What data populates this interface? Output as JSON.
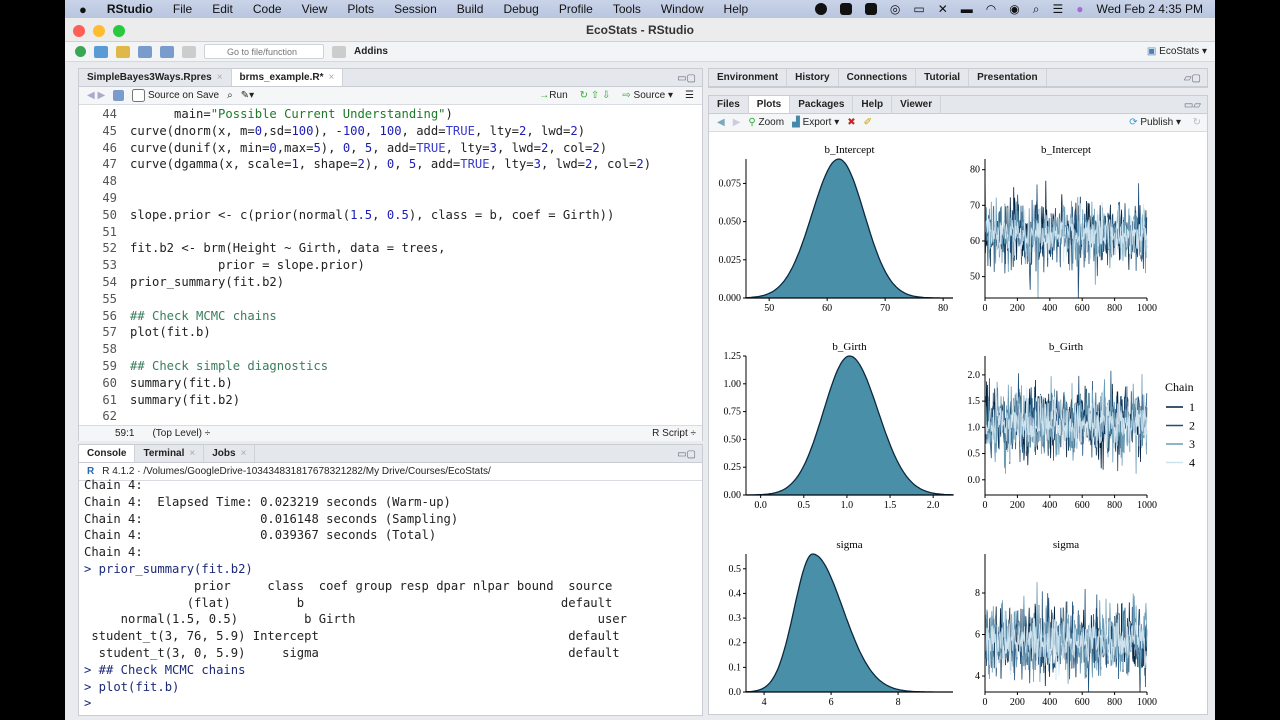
{
  "menubar": {
    "app": "RStudio",
    "items": [
      "File",
      "Edit",
      "Code",
      "View",
      "Plots",
      "Session",
      "Build",
      "Debug",
      "Profile",
      "Tools",
      "Window",
      "Help"
    ],
    "clock": "Wed Feb 2  4:35 PM"
  },
  "window": {
    "title": "EcoStats - RStudio"
  },
  "toolbar": {
    "goto_placeholder": "Go to file/function",
    "addins": "Addins",
    "project": "EcoStats"
  },
  "editor": {
    "tabs": [
      {
        "label": "SimpleBayes3Ways.Rpres",
        "active": false
      },
      {
        "label": "brms_example.R*",
        "active": true
      }
    ],
    "source_on_save": "Source on Save",
    "run": "Run",
    "source": "Source",
    "lines": [
      {
        "n": "44",
        "segs": [
          [
            "      main=",
            ""
          ],
          [
            "\"Possible Current Understanding\"",
            "str"
          ],
          [
            ")",
            ""
          ]
        ]
      },
      {
        "n": "45",
        "segs": [
          [
            "curve(dnorm(x, m=",
            ""
          ],
          [
            "0",
            "num"
          ],
          [
            ",sd=",
            ""
          ],
          [
            "100",
            "num"
          ],
          [
            "), -",
            ""
          ],
          [
            "100",
            "num"
          ],
          [
            ", ",
            ""
          ],
          [
            "100",
            "num"
          ],
          [
            ", add=",
            ""
          ],
          [
            "TRUE",
            "kw"
          ],
          [
            ", lty=",
            ""
          ],
          [
            "2",
            "num"
          ],
          [
            ", lwd=",
            ""
          ],
          [
            "2",
            "num"
          ],
          [
            ")",
            ""
          ]
        ]
      },
      {
        "n": "46",
        "segs": [
          [
            "curve(dunif(x, min=",
            ""
          ],
          [
            "0",
            "num"
          ],
          [
            ",max=",
            ""
          ],
          [
            "5",
            "num"
          ],
          [
            "), ",
            ""
          ],
          [
            "0",
            "num"
          ],
          [
            ", ",
            ""
          ],
          [
            "5",
            "num"
          ],
          [
            ", add=",
            ""
          ],
          [
            "TRUE",
            "kw"
          ],
          [
            ", lty=",
            ""
          ],
          [
            "3",
            "num"
          ],
          [
            ", lwd=",
            ""
          ],
          [
            "2",
            "num"
          ],
          [
            ", col=",
            ""
          ],
          [
            "2",
            "num"
          ],
          [
            ")",
            ""
          ]
        ]
      },
      {
        "n": "47",
        "segs": [
          [
            "curve(dgamma(x, scale=",
            ""
          ],
          [
            "1",
            "num"
          ],
          [
            ", shape=",
            ""
          ],
          [
            "2",
            "num"
          ],
          [
            "), ",
            ""
          ],
          [
            "0",
            "num"
          ],
          [
            ", ",
            ""
          ],
          [
            "5",
            "num"
          ],
          [
            ", add=",
            ""
          ],
          [
            "TRUE",
            "kw"
          ],
          [
            ", lty=",
            ""
          ],
          [
            "3",
            "num"
          ],
          [
            ", lwd=",
            ""
          ],
          [
            "2",
            "num"
          ],
          [
            ", col=",
            ""
          ],
          [
            "2",
            "num"
          ],
          [
            ")",
            ""
          ]
        ]
      },
      {
        "n": "48",
        "segs": []
      },
      {
        "n": "49",
        "segs": []
      },
      {
        "n": "50",
        "segs": [
          [
            "slope.prior <- c(prior(normal(",
            ""
          ],
          [
            "1.5",
            "num"
          ],
          [
            ", ",
            ""
          ],
          [
            "0.5",
            "num"
          ],
          [
            "), class = b, coef = Girth))",
            ""
          ]
        ]
      },
      {
        "n": "51",
        "segs": []
      },
      {
        "n": "52",
        "segs": [
          [
            "fit.b2 <- brm(Height ~ Girth, data = trees,",
            ""
          ]
        ]
      },
      {
        "n": "53",
        "segs": [
          [
            "            prior = slope.prior)",
            ""
          ]
        ]
      },
      {
        "n": "54",
        "segs": [
          [
            "prior_summary(fit.b2)",
            ""
          ]
        ]
      },
      {
        "n": "55",
        "segs": []
      },
      {
        "n": "56",
        "segs": [
          [
            "## Check MCMC chains",
            "com"
          ]
        ]
      },
      {
        "n": "57",
        "segs": [
          [
            "plot(fit.b)",
            ""
          ]
        ]
      },
      {
        "n": "58",
        "segs": []
      },
      {
        "n": "59",
        "segs": [
          [
            "## Check simple diagnostics",
            "com"
          ]
        ]
      },
      {
        "n": "60",
        "segs": [
          [
            "summary(fit.b)",
            ""
          ]
        ]
      },
      {
        "n": "61",
        "segs": [
          [
            "summary(fit.b2)",
            ""
          ]
        ]
      },
      {
        "n": "62",
        "segs": []
      }
    ],
    "status_pos": "59:1",
    "status_scope": "(Top Level) ÷",
    "status_type": "R Script ÷"
  },
  "console": {
    "tabs": [
      {
        "label": "Console",
        "active": true
      },
      {
        "label": "Terminal",
        "active": false
      },
      {
        "label": "Jobs",
        "active": false
      }
    ],
    "path": "R 4.1.2 · /Volumes/GoogleDrive-103434831817678321282/My Drive/Courses/EcoStats/",
    "lines": [
      {
        "t": "Chain 4:",
        "cmd": false
      },
      {
        "t": "Chain 4:  Elapsed Time: 0.023219 seconds (Warm-up)",
        "cmd": false
      },
      {
        "t": "Chain 4:                0.016148 seconds (Sampling)",
        "cmd": false
      },
      {
        "t": "Chain 4:                0.039367 seconds (Total)",
        "cmd": false
      },
      {
        "t": "Chain 4: ",
        "cmd": false
      },
      {
        "t": "> prior_summary(fit.b2)",
        "cmd": true
      },
      {
        "t": "               prior     class  coef group resp dpar nlpar bound  source",
        "cmd": false
      },
      {
        "t": "              (flat)         b                                   default",
        "cmd": false
      },
      {
        "t": "     normal(1.5, 0.5)         b Girth                                 user",
        "cmd": false
      },
      {
        "t": " student_t(3, 76, 5.9) Intercept                                  default",
        "cmd": false
      },
      {
        "t": "  student_t(3, 0, 5.9)     sigma                                  default",
        "cmd": false
      },
      {
        "t": "> ## Check MCMC chains",
        "cmd": true
      },
      {
        "t": "> plot(fit.b)",
        "cmd": true
      },
      {
        "t": "> ",
        "cmd": true
      }
    ]
  },
  "right_top": {
    "tabs": [
      "Environment",
      "History",
      "Connections",
      "Tutorial",
      "Presentation"
    ]
  },
  "right_bottom": {
    "tabs": [
      {
        "label": "Files",
        "active": false
      },
      {
        "label": "Plots",
        "active": true
      },
      {
        "label": "Packages",
        "active": false
      },
      {
        "label": "Help",
        "active": false
      },
      {
        "label": "Viewer",
        "active": false
      }
    ],
    "zoom": "Zoom",
    "export": "Export",
    "publish": "Publish"
  },
  "colors": {
    "density_fill": "#4a8fa8",
    "density_line": "#0b2a3f",
    "chains": [
      "#011f3b",
      "#1f4e79",
      "#6a9cb5",
      "#cfe3ef"
    ]
  },
  "chart_data": [
    {
      "type": "area",
      "title": "b_Intercept",
      "xlim": [
        46,
        81.7
      ],
      "ylim": [
        0,
        0.091
      ],
      "xticks": [
        "50",
        "60",
        "70",
        "80"
      ],
      "xtickvals": [
        50,
        60,
        70,
        80
      ],
      "yticks": [
        "0.000",
        "0.025",
        "0.050",
        "0.075"
      ],
      "ytickvals": [
        0,
        0.025,
        0.05,
        0.075
      ],
      "mode": 62,
      "peak": 0.091,
      "sd_left": 4.6,
      "sd_right": 4.4
    },
    {
      "type": "line",
      "title": "b_Intercept",
      "xlim": [
        0,
        1000
      ],
      "ylim": [
        44,
        83
      ],
      "xticks": [
        "0",
        "200",
        "400",
        "600",
        "800",
        "1000"
      ],
      "xtickvals": [
        0,
        200,
        400,
        600,
        800,
        1000
      ],
      "yticks": [
        "50",
        "60",
        "70",
        "80"
      ],
      "ytickvals": [
        50,
        60,
        70,
        80
      ],
      "center": 62,
      "spread": 4.5
    },
    {
      "type": "area",
      "title": "b_Girth",
      "xlim": [
        -0.17,
        2.23
      ],
      "ylim": [
        0,
        1.25
      ],
      "xticks": [
        "0.0",
        "0.5",
        "1.0",
        "1.5",
        "2.0"
      ],
      "xtickvals": [
        0,
        0.5,
        1,
        1.5,
        2
      ],
      "yticks": [
        "0.00",
        "0.25",
        "0.50",
        "0.75",
        "1.00",
        "1.25"
      ],
      "ytickvals": [
        0,
        0.25,
        0.5,
        0.75,
        1,
        1.25
      ],
      "mode": 1.03,
      "peak": 1.25,
      "sd_left": 0.3,
      "sd_right": 0.33
    },
    {
      "type": "line",
      "title": "b_Girth",
      "xlim": [
        0,
        1000
      ],
      "ylim": [
        -0.29,
        2.36
      ],
      "xticks": [
        "0",
        "200",
        "400",
        "600",
        "800",
        "1000"
      ],
      "xtickvals": [
        0,
        200,
        400,
        600,
        800,
        1000
      ],
      "yticks": [
        "0.0",
        "0.5",
        "1.0",
        "1.5",
        "2.0"
      ],
      "ytickvals": [
        0,
        0.5,
        1,
        1.5,
        2
      ],
      "center": 1.08,
      "spread": 0.33
    },
    {
      "type": "area",
      "title": "sigma",
      "xlim": [
        3.46,
        9.64
      ],
      "ylim": [
        0,
        0.56
      ],
      "xticks": [
        "4",
        "6",
        "8"
      ],
      "xtickvals": [
        4,
        6,
        8
      ],
      "yticks": [
        "0.0",
        "0.1",
        "0.2",
        "0.3",
        "0.4",
        "0.5"
      ],
      "ytickvals": [
        0,
        0.1,
        0.2,
        0.3,
        0.4,
        0.5
      ],
      "mode": 5.45,
      "peak": 0.56,
      "sd_left": 0.55,
      "sd_right": 0.9
    },
    {
      "type": "line",
      "title": "sigma",
      "xlim": [
        0,
        1000
      ],
      "ylim": [
        3.23,
        9.88
      ],
      "xticks": [
        "0",
        "200",
        "400",
        "600",
        "800",
        "1000"
      ],
      "xtickvals": [
        0,
        200,
        400,
        600,
        800,
        1000
      ],
      "yticks": [
        "4",
        "6",
        "8"
      ],
      "ytickvals": [
        4,
        6,
        8
      ],
      "center": 5.7,
      "spread": 0.85
    }
  ],
  "legend": {
    "title": "Chain",
    "entries": [
      "1",
      "2",
      "3",
      "4"
    ],
    "placement": "right"
  }
}
